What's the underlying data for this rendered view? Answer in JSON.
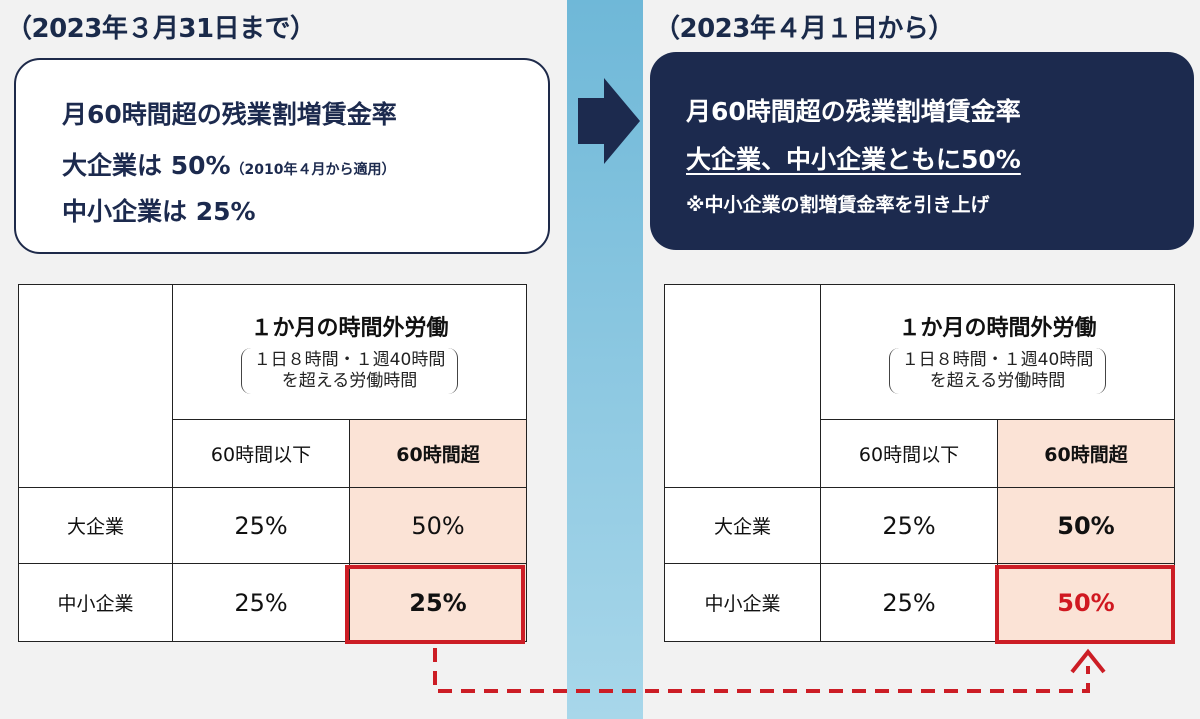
{
  "before": {
    "period": "（2023年３月31日まで）",
    "summary": {
      "line1": "月60時間超の残業割増賃金率",
      "line2_main": "大企業は 50%",
      "line2_note": "（2010年４月から適用）",
      "line3": "中小企業は 25%"
    },
    "table": {
      "header_title": "１か月の時間外労働",
      "header_sub1": "１日８時間・１週40時間",
      "header_sub2": "を超える労働時間",
      "col1": "60時間以下",
      "col2": "60時間超",
      "rows": [
        {
          "label": "大企業",
          "v1": "25%",
          "v2": "50%"
        },
        {
          "label": "中小企業",
          "v1": "25%",
          "v2": "25%"
        }
      ]
    }
  },
  "after": {
    "period": "（2023年４月１日から）",
    "summary": {
      "line1": "月60時間超の残業割増賃金率",
      "line2": "大企業、中小企業ともに50%",
      "line3": "※中小企業の割増賃金率を引き上げ"
    },
    "table": {
      "header_title": "１か月の時間外労働",
      "header_sub1": "１日８時間・１週40時間",
      "header_sub2": "を超える労働時間",
      "col1": "60時間以下",
      "col2": "60時間超",
      "rows": [
        {
          "label": "大企業",
          "v1": "25%",
          "v2": "50%"
        },
        {
          "label": "中小企業",
          "v1": "25%",
          "v2": "50%"
        }
      ]
    }
  },
  "colors": {
    "navy": "#1c2a4e",
    "highlight_red": "#cc1d25",
    "shade": "#fbe3d6",
    "divider": "#6fb8d8"
  },
  "icons": [
    "right-arrow-icon",
    "dashed-up-arrow-icon"
  ]
}
